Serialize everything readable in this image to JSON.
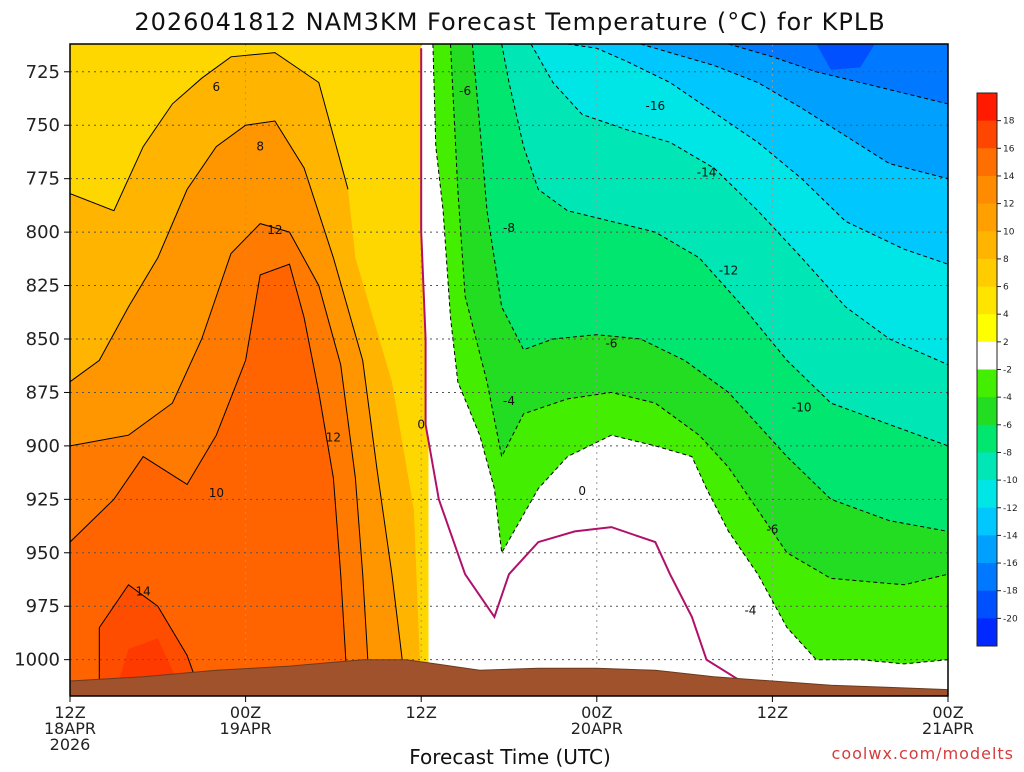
{
  "chart_data": {
    "type": "heatmap",
    "subtype": "filled-contour time-height cross section",
    "title": "2026041812 NAM3KM Forecast Temperature (°C) for KPLB",
    "xlabel": "Forecast Time (UTC)",
    "ylabel": "",
    "credit": "coolwx.com/modelts",
    "x_unit": "hours since 2026-04-18 12Z",
    "xlim": [
      0,
      60
    ],
    "x_ticks": [
      {
        "hour": 0,
        "lines": [
          "12Z",
          "18APR",
          "2026"
        ]
      },
      {
        "hour": 12,
        "lines": [
          "00Z",
          "19APR"
        ]
      },
      {
        "hour": 24,
        "lines": [
          "12Z"
        ]
      },
      {
        "hour": 36,
        "lines": [
          "00Z",
          "20APR"
        ]
      },
      {
        "hour": 48,
        "lines": [
          "12Z"
        ]
      },
      {
        "hour": 60,
        "lines": [
          "00Z",
          "21APR"
        ]
      }
    ],
    "y_unit": "hPa",
    "ylim": [
      1017,
      712
    ],
    "y_ticks": [
      "725",
      "750",
      "775",
      "800",
      "825",
      "850",
      "875",
      "900",
      "925",
      "950",
      "975",
      "1000"
    ],
    "colorbar": {
      "levels": [
        "18",
        "16",
        "14",
        "12",
        "10",
        "8",
        "6",
        "4",
        "2",
        "-2",
        "-4",
        "-6",
        "-8",
        "-10",
        "-12",
        "-14",
        "-16",
        "-18",
        "-20"
      ],
      "colors": [
        "#ff1a00",
        "#ff4600",
        "#ff6e00",
        "#ff8c00",
        "#ffa000",
        "#ffb400",
        "#ffcc00",
        "#ffe400",
        "#ffff00",
        "#ffffff",
        "#44ee00",
        "#22dd22",
        "#00e66e",
        "#00e6b4",
        "#00e6e6",
        "#00c8ff",
        "#00a0ff",
        "#0078ff",
        "#0050ff",
        "#0028ff"
      ]
    },
    "series": [
      {
        "name": "0°C isotherm x (h)",
        "points": [
          [
            24.0,
            714
          ],
          [
            24.0,
            800
          ],
          [
            24.3,
            850
          ],
          [
            24.3,
            890
          ],
          [
            25.2,
            925
          ],
          [
            27.0,
            960
          ],
          [
            29.0,
            980
          ],
          [
            30.0,
            960
          ],
          [
            32.0,
            945
          ],
          [
            34.5,
            940
          ],
          [
            37.0,
            938
          ],
          [
            40.0,
            945
          ],
          [
            41.0,
            960
          ],
          [
            42.5,
            980
          ],
          [
            43.5,
            1000
          ],
          [
            47.0,
            1015
          ]
        ]
      }
    ],
    "sample_profiles": [
      {
        "hour": 12,
        "levels_hPa": [
          725,
          775,
          825,
          875,
          925,
          975
        ],
        "temps_C": [
          5,
          9,
          11,
          11,
          11,
          14
        ]
      },
      {
        "hour": 36,
        "levels_hPa": [
          725,
          775,
          825,
          875,
          925,
          975
        ],
        "temps_C": [
          -11,
          -9,
          -7,
          -4,
          -1,
          3
        ]
      },
      {
        "hour": 52,
        "levels_hPa": [
          725,
          775,
          825,
          875,
          925,
          975
        ],
        "temps_C": [
          -17,
          -15,
          -12,
          -8,
          -5,
          -3
        ]
      }
    ],
    "contour_labels": [
      {
        "text": "6",
        "hour": 10.0,
        "p": 732
      },
      {
        "text": "8",
        "hour": 13.0,
        "p": 760
      },
      {
        "text": "12",
        "hour": 14.0,
        "p": 799
      },
      {
        "text": "12",
        "hour": 18.0,
        "p": 896
      },
      {
        "text": "10",
        "hour": 10.0,
        "p": 922
      },
      {
        "text": "14",
        "hour": 5.0,
        "p": 968
      },
      {
        "text": "0",
        "hour": 24.0,
        "p": 890
      },
      {
        "text": "0",
        "hour": 35.0,
        "p": 921
      },
      {
        "text": "-6",
        "hour": 27.0,
        "p": 734
      },
      {
        "text": "-8",
        "hour": 30.0,
        "p": 798
      },
      {
        "text": "-4",
        "hour": 30.0,
        "p": 879
      },
      {
        "text": "-6",
        "hour": 37.0,
        "p": 852
      },
      {
        "text": "-16",
        "hour": 40.0,
        "p": 741
      },
      {
        "text": "-14",
        "hour": 43.5,
        "p": 772
      },
      {
        "text": "-12",
        "hour": 45.0,
        "p": 818
      },
      {
        "text": "-10",
        "hour": 50.0,
        "p": 882
      },
      {
        "text": "-6",
        "hour": 48.0,
        "p": 939
      },
      {
        "text": "-4",
        "hour": 46.5,
        "p": 977
      }
    ]
  }
}
